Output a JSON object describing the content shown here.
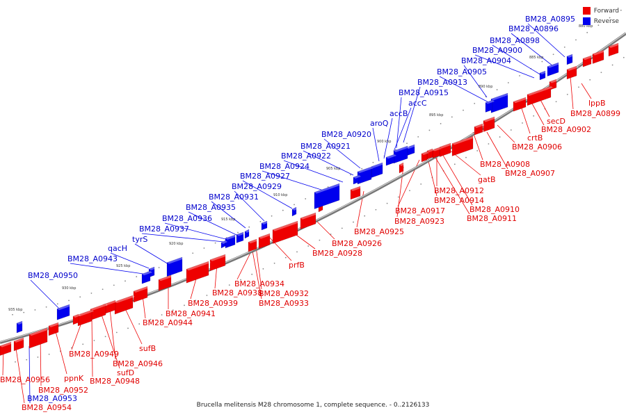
{
  "legend": {
    "forward_label": "Forward",
    "reverse_label": "Reverse",
    "forward_color": "#ee0000",
    "reverse_color": "#0000ee"
  },
  "caption": "Brucella melitensis M28 chromosome 1, complete sequence. - 0..2126133",
  "ruler_labels": [
    "880 kbp",
    "885 kbp",
    "890 kbp",
    "895 kbp",
    "900 kbp",
    "905 kbp",
    "910 kbp",
    "915 kbp",
    "920 kbp",
    "925 kbp",
    "930 kbp",
    "935 kbp"
  ],
  "forward_genes": [
    "lppB",
    "BM28_A0899",
    "secD",
    "BM28_A0902",
    "crtB",
    "BM28_A0906",
    "BM28_A0907",
    "BM28_A0908",
    "gatB",
    "BM28_A0910",
    "BM28_A0911",
    "BM28_A0912",
    "BM28_A0914",
    "BM28_A0917",
    "BM28_A0923",
    "BM28_A0925",
    "BM28_A0926",
    "BM28_A0928",
    "prfB",
    "BM28_A0932",
    "BM28_A0933",
    "BM28_A0934",
    "BM28_A0938",
    "BM28_A0939",
    "BM28_A0941",
    "BM28_A0944",
    "sufB",
    "BM28_A0946",
    "sufD",
    "BM28_A0948",
    "BM28_A0949",
    "ppnK",
    "BM28_A0952",
    "BM28_A0954",
    "BM28_A0956"
  ],
  "reverse_genes": [
    "BM28_A0895",
    "BM28_A0896",
    "BM28_A0898",
    "BM28_A0900",
    "BM28_A0904",
    "BM28_A0905",
    "BM28_A0913",
    "BM28_A0915",
    "accC",
    "accB",
    "aroQ",
    "BM28_A0920",
    "BM28_A0921",
    "BM28_A0922",
    "BM28_A0924",
    "BM28_A0927",
    "BM28_A0929",
    "BM28_A0931",
    "BM28_A0935",
    "BM28_A0936",
    "BM28_A0937",
    "tyrS",
    "qacH",
    "BM28_A0943",
    "BM28_A0950",
    "BM28_A0953"
  ]
}
